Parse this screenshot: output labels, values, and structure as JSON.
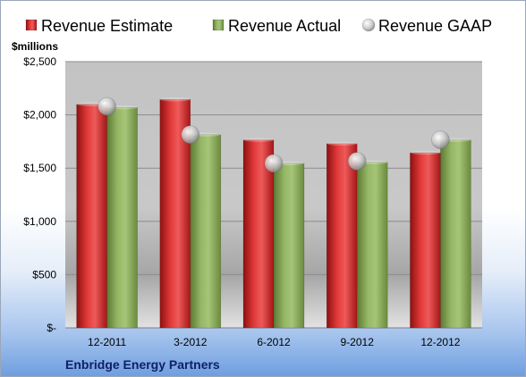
{
  "chart_data": {
    "type": "bar",
    "unit_label": "$millions",
    "footer_label": "Enbridge Energy Partners",
    "categories": [
      "12-2011",
      "3-2012",
      "6-2012",
      "9-2012",
      "12-2012"
    ],
    "series": [
      {
        "name": "Revenue Estimate",
        "kind": "bar",
        "color": "#d42a2a",
        "values": [
          2100,
          2145,
          1765,
          1730,
          1645
        ]
      },
      {
        "name": "Revenue Actual",
        "kind": "bar",
        "color": "#8aab5a",
        "values": [
          2070,
          1815,
          1545,
          1555,
          1765
        ]
      },
      {
        "name": "Revenue GAAP",
        "kind": "marker",
        "color": "#c8c8c8",
        "values": [
          2080,
          1815,
          1545,
          1565,
          1765
        ]
      }
    ],
    "yticks": [
      {
        "value": 0,
        "label": "$-"
      },
      {
        "value": 500,
        "label": "$500"
      },
      {
        "value": 1000,
        "label": "$1,000"
      },
      {
        "value": 1500,
        "label": "$1,500"
      },
      {
        "value": 2000,
        "label": "$2,000"
      },
      {
        "value": 2500,
        "label": "$2,500"
      }
    ],
    "ylim": [
      0,
      2500
    ],
    "grid": true,
    "legend_position": "top"
  }
}
